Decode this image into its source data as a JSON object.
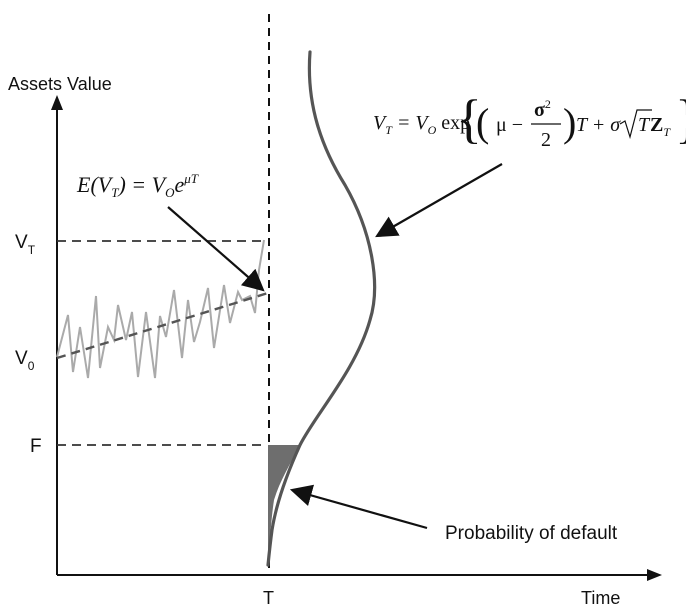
{
  "axes": {
    "y_label": "Assets Value",
    "x_label": "Time",
    "x_tick": "T"
  },
  "levels": {
    "vt": {
      "base": "V",
      "sub": "T"
    },
    "v0": {
      "base": "V",
      "sub": "0"
    },
    "f": "F"
  },
  "formulas": {
    "expected": {
      "lhs": "E(V",
      "lhs_sub": "T",
      "mid": ") = V",
      "mid_sub": "O",
      "e": "e",
      "exp": "μT"
    },
    "terminal": {
      "lhs": "V",
      "lhs_sub": "T",
      "eq": " = V",
      "eq_sub": "O",
      "func": " exp",
      "mu": "μ −",
      "num": "σ",
      "num_sup": "2",
      "den": "2",
      "t1": "T + σ",
      "t2": "T",
      "z": "Z",
      "z_sub": "T"
    }
  },
  "annotations": {
    "default": "Probability of default"
  },
  "colors": {
    "axis": "#111111",
    "path": "#aaaaaa",
    "trend": "#555555",
    "density": "#555555",
    "shade": "#6e6e6e"
  }
}
